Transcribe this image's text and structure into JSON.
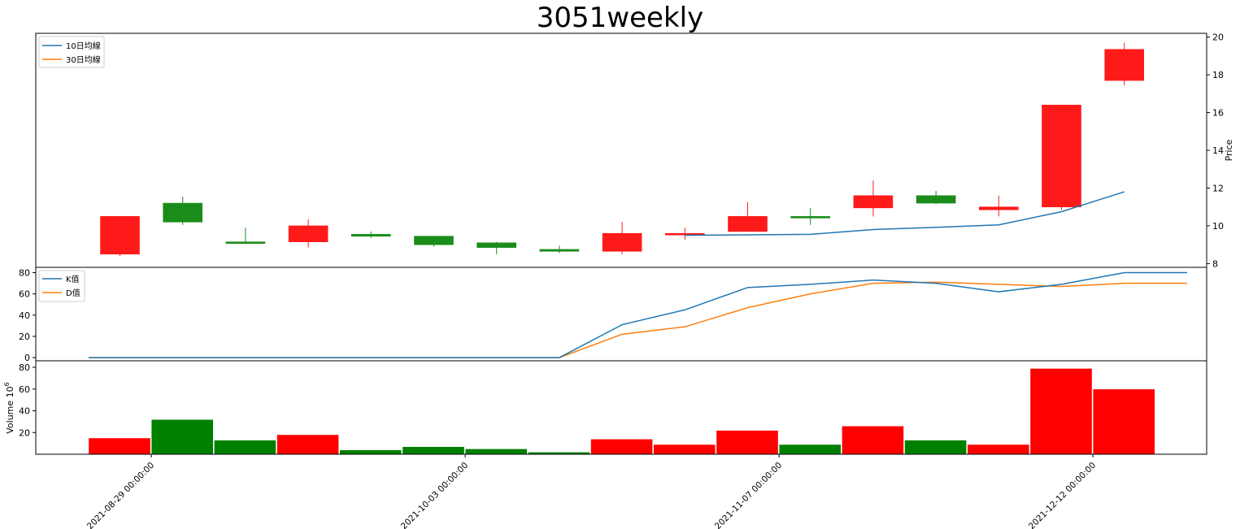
{
  "chart_data": {
    "title": "3051weekly",
    "x_tick_labels": [
      "2021-08-29 00:00:00",
      "2021-10-03 00:00:00",
      "2021-11-07 00:00:00",
      "2021-12-12 00:00:00"
    ],
    "x_tick_positions": [
      0.5,
      5.5,
      10.5,
      15.5
    ],
    "price_panel": {
      "type": "candlestick",
      "ylabel": "Price",
      "ylim": [
        7.8,
        20.2
      ],
      "yticks": [
        8,
        10,
        12,
        14,
        16,
        18,
        20
      ],
      "y_axis_side": "right",
      "legend": [
        "10日均線",
        "30日均線"
      ],
      "legend_position": "top-left",
      "candles": [
        {
          "open": 8.5,
          "high": 10.5,
          "low": 8.4,
          "close": 10.5,
          "color": "red"
        },
        {
          "open": 11.2,
          "high": 11.55,
          "low": 10.05,
          "close": 10.2,
          "color": "green"
        },
        {
          "open": 9.15,
          "high": 9.9,
          "low": 9.1,
          "close": 9.1,
          "color": "green"
        },
        {
          "open": 9.15,
          "high": 10.35,
          "low": 8.85,
          "close": 10.0,
          "color": "red"
        },
        {
          "open": 9.55,
          "high": 9.7,
          "low": 9.35,
          "close": 9.45,
          "color": "green"
        },
        {
          "open": 9.45,
          "high": 9.45,
          "low": 8.9,
          "close": 9.0,
          "color": "green"
        },
        {
          "open": 9.1,
          "high": 9.15,
          "low": 8.5,
          "close": 8.85,
          "color": "green"
        },
        {
          "open": 8.75,
          "high": 8.95,
          "low": 8.55,
          "close": 8.65,
          "color": "green"
        },
        {
          "open": 8.65,
          "high": 10.2,
          "low": 8.5,
          "close": 9.6,
          "color": "red"
        },
        {
          "open": 9.55,
          "high": 9.9,
          "low": 9.25,
          "close": 9.6,
          "color": "red"
        },
        {
          "open": 9.7,
          "high": 11.25,
          "low": 9.7,
          "close": 10.5,
          "color": "red"
        },
        {
          "open": 10.5,
          "high": 10.95,
          "low": 10.05,
          "close": 10.45,
          "color": "green"
        },
        {
          "open": 10.95,
          "high": 12.4,
          "low": 10.5,
          "close": 11.6,
          "color": "red"
        },
        {
          "open": 11.6,
          "high": 11.85,
          "low": 11.15,
          "close": 11.2,
          "color": "green"
        },
        {
          "open": 10.85,
          "high": 11.6,
          "low": 10.5,
          "close": 11.0,
          "color": "red"
        },
        {
          "open": 11.0,
          "high": 16.4,
          "low": 10.85,
          "close": 16.4,
          "color": "red"
        },
        {
          "open": 17.7,
          "high": 19.7,
          "low": 17.45,
          "close": 19.35,
          "color": "red"
        }
      ],
      "ma10": {
        "x": [
          9,
          10,
          11,
          12,
          13,
          14,
          15,
          16
        ],
        "values": [
          9.5,
          9.52,
          9.55,
          9.8,
          9.92,
          10.05,
          10.75,
          11.8
        ]
      },
      "ma30": {
        "x": [],
        "values": []
      }
    },
    "kd_panel": {
      "type": "line",
      "ylim": [
        -3,
        85
      ],
      "yticks": [
        0,
        20,
        40,
        60,
        80
      ],
      "legend": [
        "K值",
        "D值"
      ],
      "legend_position": "top-left",
      "x": [
        -0.5,
        7,
        8,
        9,
        10,
        11,
        12,
        13,
        14,
        15,
        16,
        17
      ],
      "k_values": [
        0,
        0,
        31,
        45,
        66,
        69,
        73,
        70,
        62,
        69,
        80,
        80
      ],
      "d_values": [
        0,
        0,
        22,
        29,
        47,
        60,
        70,
        71,
        69,
        67,
        70,
        70
      ]
    },
    "volume_panel": {
      "type": "bar",
      "ylabel": "Volume  10^6",
      "ylim": [
        0,
        86
      ],
      "yticks": [
        20,
        40,
        60,
        80
      ],
      "x": [
        -0.5,
        0.5,
        1.5,
        2.5,
        3.5,
        4.5,
        5.5,
        6.5,
        7.5,
        8.5,
        9.5,
        10.5,
        11.5,
        12.5,
        13.5,
        14.5,
        15.5
      ],
      "values": [
        15,
        32,
        13,
        18,
        4,
        7,
        5,
        2,
        14,
        9,
        22,
        9,
        26,
        13,
        9,
        79,
        60
      ],
      "colors": [
        "red",
        "green",
        "green",
        "red",
        "green",
        "green",
        "green",
        "green",
        "red",
        "red",
        "red",
        "green",
        "red",
        "green",
        "red",
        "red",
        "red"
      ]
    },
    "colors": {
      "red": "#ff0000",
      "candle_red": "#ff1a1a",
      "green": "#008000",
      "candle_green": "#1a8c1a",
      "line1": "#1f77b4",
      "line2": "#ff7f0e"
    }
  }
}
